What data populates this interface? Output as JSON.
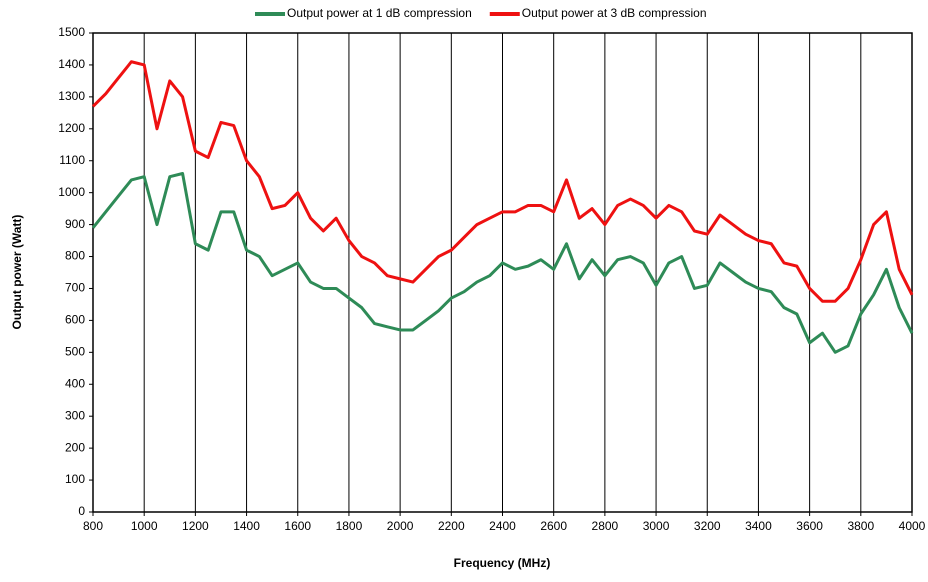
{
  "chart_data": {
    "type": "line",
    "x_label": "Frequency  (MHz)",
    "y_label": "Output power (Watt)",
    "x": [
      800,
      850,
      900,
      950,
      1000,
      1050,
      1100,
      1150,
      1200,
      1250,
      1300,
      1350,
      1400,
      1450,
      1500,
      1550,
      1600,
      1650,
      1700,
      1750,
      1800,
      1850,
      1900,
      1950,
      2000,
      2050,
      2100,
      2150,
      2200,
      2250,
      2300,
      2350,
      2400,
      2450,
      2500,
      2550,
      2600,
      2650,
      2700,
      2750,
      2800,
      2850,
      2900,
      2950,
      3000,
      3050,
      3100,
      3150,
      3200,
      3250,
      3300,
      3350,
      3400,
      3450,
      3500,
      3550,
      3600,
      3650,
      3700,
      3750,
      3800,
      3850,
      3900,
      3950,
      4000
    ],
    "series": [
      {
        "name": "Output power at 1 dB compression",
        "color": "#2e8b57",
        "values": [
          890,
          940,
          990,
          1040,
          1050,
          900,
          1050,
          1060,
          840,
          820,
          940,
          940,
          820,
          800,
          740,
          760,
          780,
          720,
          700,
          700,
          670,
          640,
          590,
          580,
          570,
          570,
          600,
          630,
          670,
          690,
          720,
          740,
          780,
          760,
          770,
          790,
          760,
          840,
          730,
          790,
          740,
          790,
          800,
          780,
          710,
          780,
          800,
          700,
          710,
          780,
          750,
          720,
          700,
          690,
          640,
          620,
          530,
          560,
          500,
          520,
          620,
          680,
          760,
          640,
          560
        ]
      },
      {
        "name": "Output power at 3 dB compression",
        "color": "#ee1111",
        "values": [
          1270,
          1310,
          1360,
          1410,
          1400,
          1200,
          1350,
          1300,
          1130,
          1110,
          1220,
          1210,
          1100,
          1050,
          950,
          960,
          1000,
          920,
          880,
          920,
          850,
          800,
          780,
          740,
          730,
          720,
          760,
          800,
          820,
          860,
          900,
          920,
          940,
          940,
          960,
          960,
          940,
          1040,
          920,
          950,
          900,
          960,
          980,
          960,
          920,
          960,
          940,
          880,
          870,
          930,
          900,
          870,
          850,
          840,
          780,
          770,
          700,
          660,
          660,
          700,
          790,
          900,
          940,
          760,
          680
        ]
      }
    ],
    "xlim": [
      800,
      4000
    ],
    "xticks": [
      800,
      1000,
      1200,
      1400,
      1600,
      1800,
      2000,
      2200,
      2400,
      2600,
      2800,
      3000,
      3200,
      3400,
      3600,
      3800,
      4000
    ],
    "ylim": [
      0,
      1500
    ],
    "yticks": [
      0,
      100,
      200,
      300,
      400,
      500,
      600,
      700,
      800,
      900,
      1000,
      1100,
      1200,
      1300,
      1400,
      1500
    ],
    "grid": "x",
    "legend": "top"
  }
}
